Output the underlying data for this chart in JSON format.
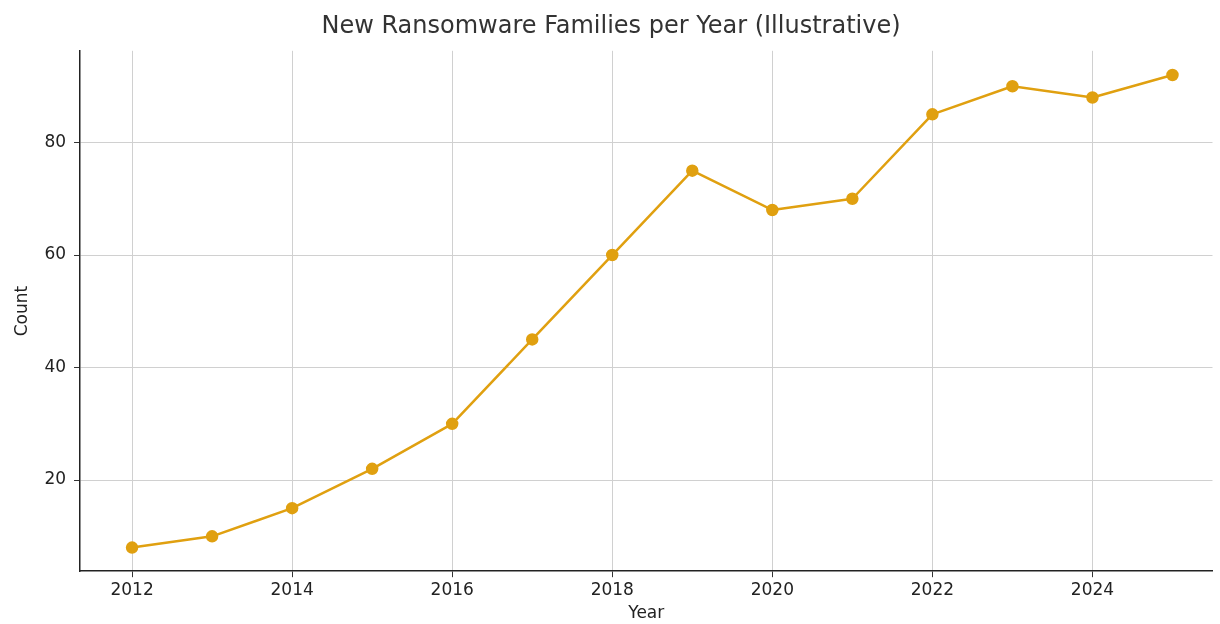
{
  "chart_data": {
    "type": "line",
    "title": "New Ransomware Families per Year (Illustrative)",
    "xlabel": "Year",
    "ylabel": "Count",
    "x": [
      2012,
      2013,
      2014,
      2015,
      2016,
      2017,
      2018,
      2019,
      2020,
      2021,
      2022,
      2023,
      2024,
      2025
    ],
    "series": [
      {
        "color": "#e0a010",
        "values": [
          8,
          10,
          15,
          22,
          30,
          45,
          60,
          75,
          68,
          70,
          85,
          90,
          88,
          92
        ]
      }
    ],
    "xlim": [
      2011.35,
      2025.5
    ],
    "xticks": [
      2012,
      2014,
      2016,
      2018,
      2020,
      2022,
      2024
    ],
    "ylim": [
      3.8,
      96.3
    ],
    "yticks": [
      20,
      40,
      60,
      80
    ],
    "grid": true,
    "legend": false,
    "marker": "circle",
    "line_style": "solid"
  }
}
